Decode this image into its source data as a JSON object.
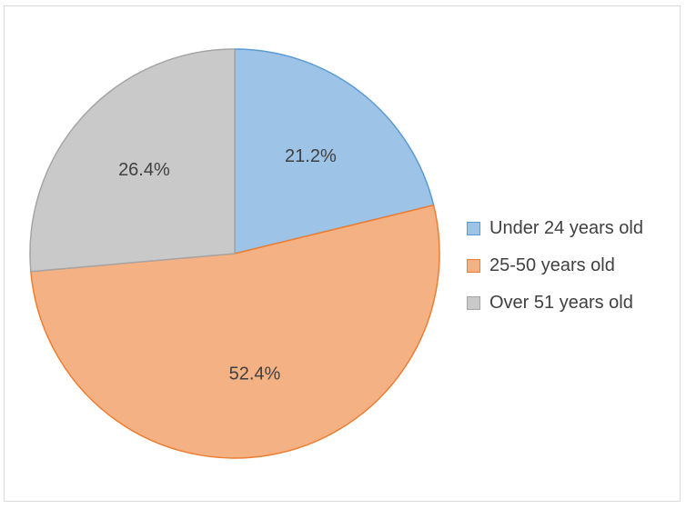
{
  "chart_data": {
    "type": "pie",
    "title": "",
    "start_angle_deg": 0,
    "direction": "clockwise",
    "legend_position": "right",
    "slices": [
      {
        "label": "Under 24 years old",
        "value": 21.2,
        "value_label": "21.2%",
        "fill": "#9dc3e6",
        "stroke": "#5b9bd5"
      },
      {
        "label": "25-50 years old",
        "value": 52.4,
        "value_label": "52.4%",
        "fill": "#f4b183",
        "stroke": "#ed7d31"
      },
      {
        "label": "Over 51 years old",
        "value": 26.4,
        "value_label": "26.4%",
        "fill": "#c9c9c9",
        "stroke": "#a5a5a5"
      }
    ]
  }
}
